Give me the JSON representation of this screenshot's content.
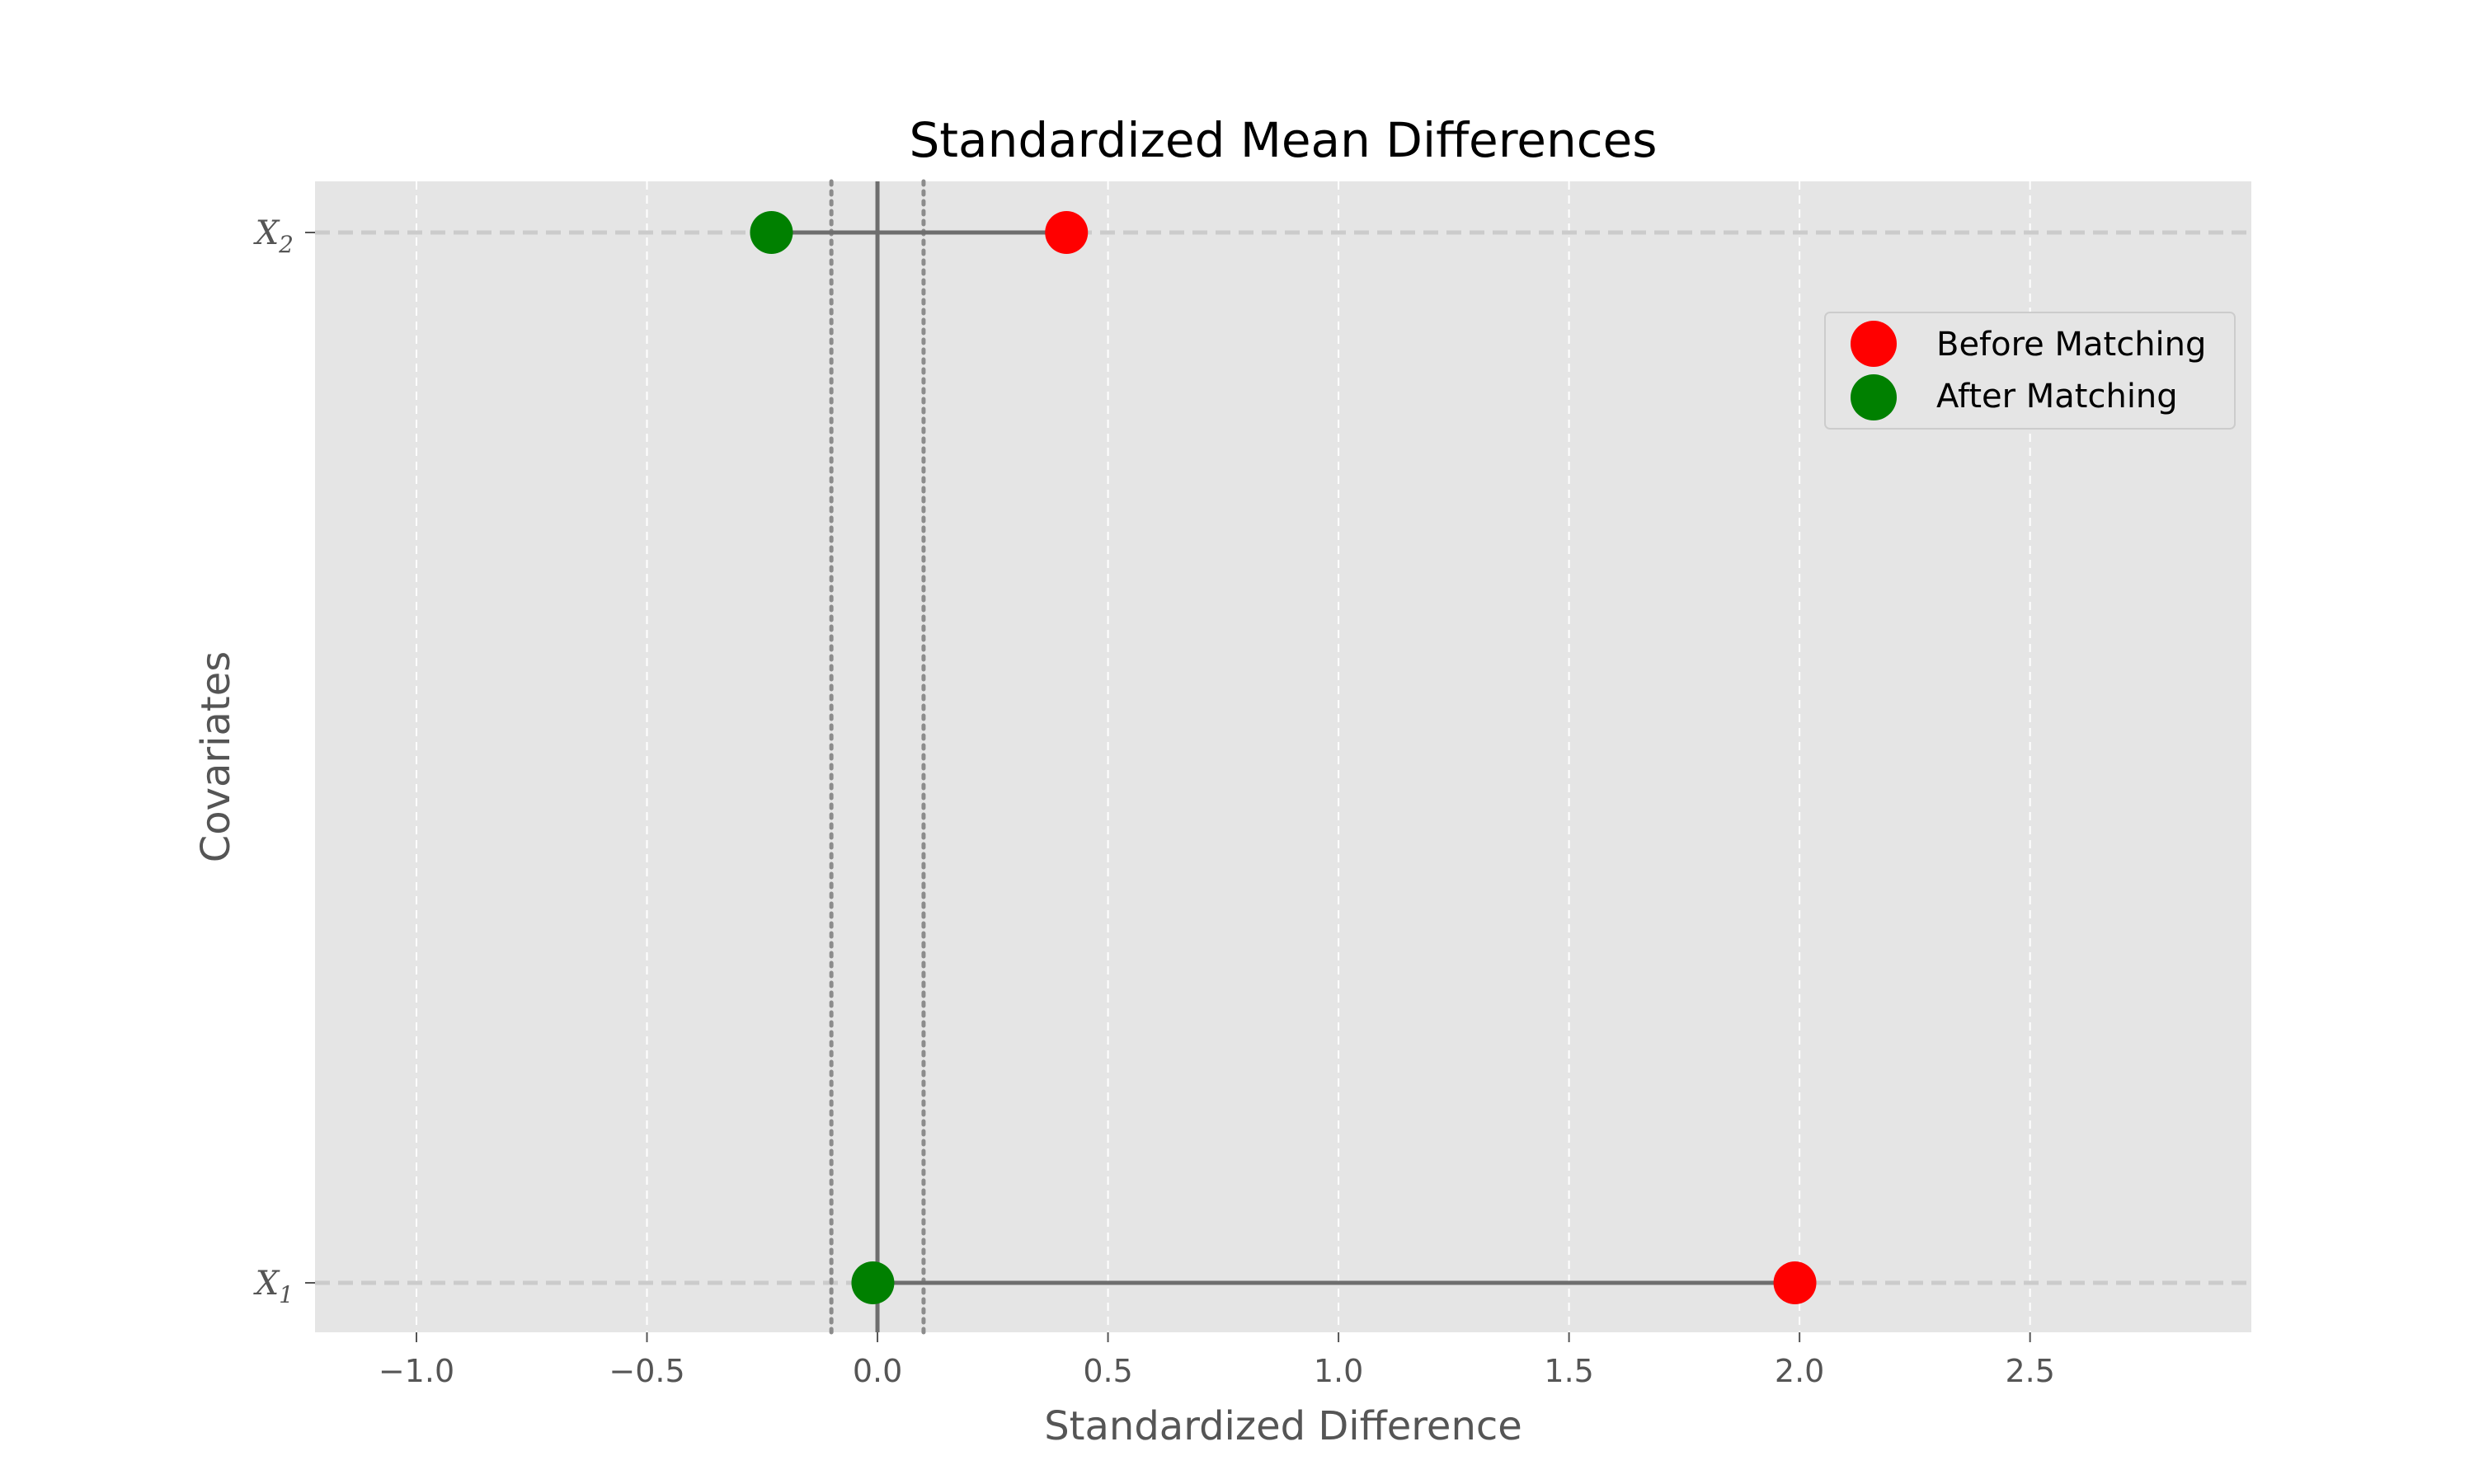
{
  "chart_data": {
    "type": "scatter",
    "title": "Standardized Mean Differences",
    "xlabel": "Standardized Difference",
    "ylabel": "Covariates",
    "xlim": [
      -1.22,
      2.98
    ],
    "xticks": [
      -1.0,
      -0.5,
      0.0,
      0.5,
      1.0,
      1.5,
      2.0,
      2.5
    ],
    "xtick_labels": [
      "−1.0",
      "−0.5",
      "0.0",
      "0.5",
      "1.0",
      "1.5",
      "2.0",
      "2.5"
    ],
    "categories": [
      {
        "var": "X",
        "sub": "1"
      },
      {
        "var": "X",
        "sub": "2"
      }
    ],
    "series": [
      {
        "name": "Before Matching",
        "color": "#ff0000",
        "values": [
          1.99,
          0.41
        ]
      },
      {
        "name": "After Matching",
        "color": "#008000",
        "values": [
          -0.01,
          -0.23
        ]
      }
    ],
    "reference_lines": {
      "zero": 0.0,
      "threshold": [
        -0.1,
        0.1
      ]
    },
    "grid": true,
    "legend": "upper right",
    "colors": {
      "background": "#e5e5e5",
      "grid": "#ffffff",
      "connector": "#6e6e6e"
    }
  }
}
